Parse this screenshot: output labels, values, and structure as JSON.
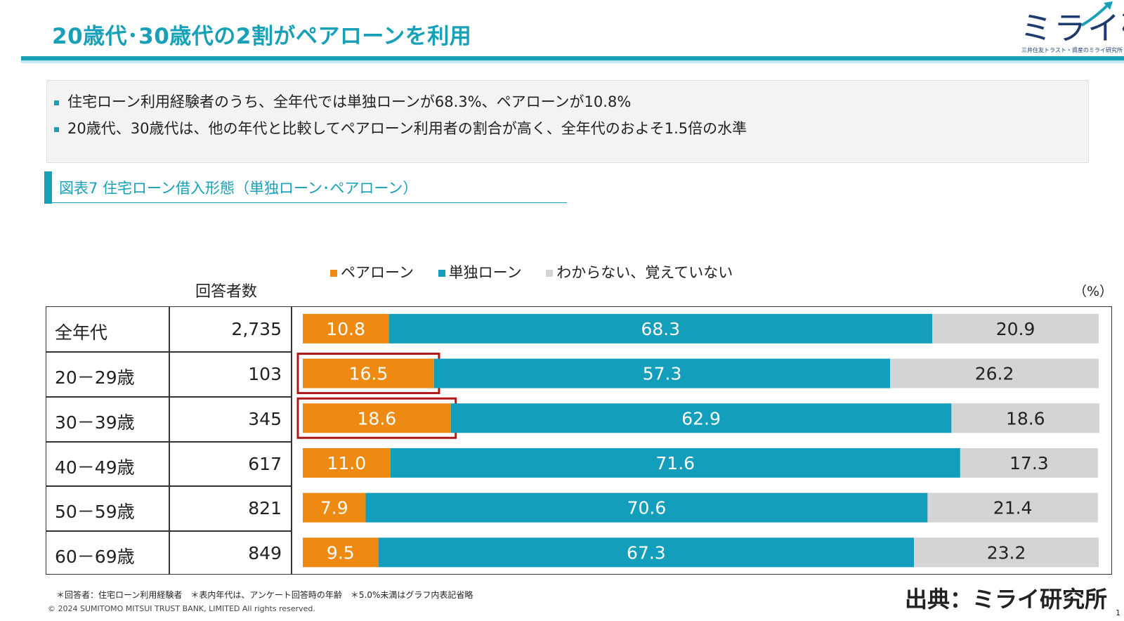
{
  "slide": {
    "title": "20歳代･30歳代の2割がペアローンを利用",
    "logo_text": "ミライ研",
    "logo_sub": "三井住友トラスト・資産のミライ研究所",
    "bullets": [
      "住宅ローン利用経験者のうち、全年代では単独ローンが68.3%、ペアローンが10.8%",
      "20歳代、30歳代は、他の年代と比較してペアローン利用者の割合が高く、全年代のおよそ1.5倍の水準"
    ],
    "figure_title": "図表7  住宅ローン借入形態（単独ローン･ペアローン）",
    "count_header": "回答者数",
    "unit": "（%）",
    "footnote": "＊回答者：住宅ローン利用経験者　＊表内年代は、アンケート回答時の年齢　＊5.0%未満はグラフ内表記省略",
    "copyright": "© 2024 SUMITOMO MITSUI TRUST BANK, LIMITED All rights reserved.",
    "source": "出典：ミライ研究所",
    "page_number": "1"
  },
  "colors": {
    "accent": "#17a0b8",
    "pair": "#ee8a12",
    "single": "#139fbb",
    "unknown": "#d4d4d4",
    "highlight": "#b01818"
  },
  "chart_data": {
    "type": "bar",
    "orientation": "horizontal",
    "stacked": true,
    "percent_stacked": true,
    "categories": [
      "全年代",
      "20－29歳",
      "30－39歳",
      "40－49歳",
      "50－59歳",
      "60－69歳"
    ],
    "respondents": [
      "2,735",
      "103",
      "345",
      "617",
      "821",
      "849"
    ],
    "series": [
      {
        "name": "ペアローン",
        "color": "#ee8a12",
        "values": [
          10.8,
          16.5,
          18.6,
          11.0,
          7.9,
          9.5
        ]
      },
      {
        "name": "単独ローン",
        "color": "#139fbb",
        "values": [
          68.3,
          57.3,
          62.9,
          71.6,
          70.6,
          67.3
        ]
      },
      {
        "name": "わからない、覚えていない",
        "color": "#d4d4d4",
        "values": [
          20.9,
          26.2,
          18.6,
          17.3,
          21.4,
          23.2
        ]
      }
    ],
    "value_labels": [
      [
        "10.8",
        "68.3",
        "20.9"
      ],
      [
        "16.5",
        "57.3",
        "26.2"
      ],
      [
        "18.6",
        "62.9",
        "18.6"
      ],
      [
        "11.0",
        "71.6",
        "17.3"
      ],
      [
        "7.9",
        "70.6",
        "21.4"
      ],
      [
        "9.5",
        "67.3",
        "23.2"
      ]
    ],
    "highlighted": [
      1,
      2
    ],
    "legend_position": "top",
    "xlim": [
      0,
      100
    ]
  }
}
